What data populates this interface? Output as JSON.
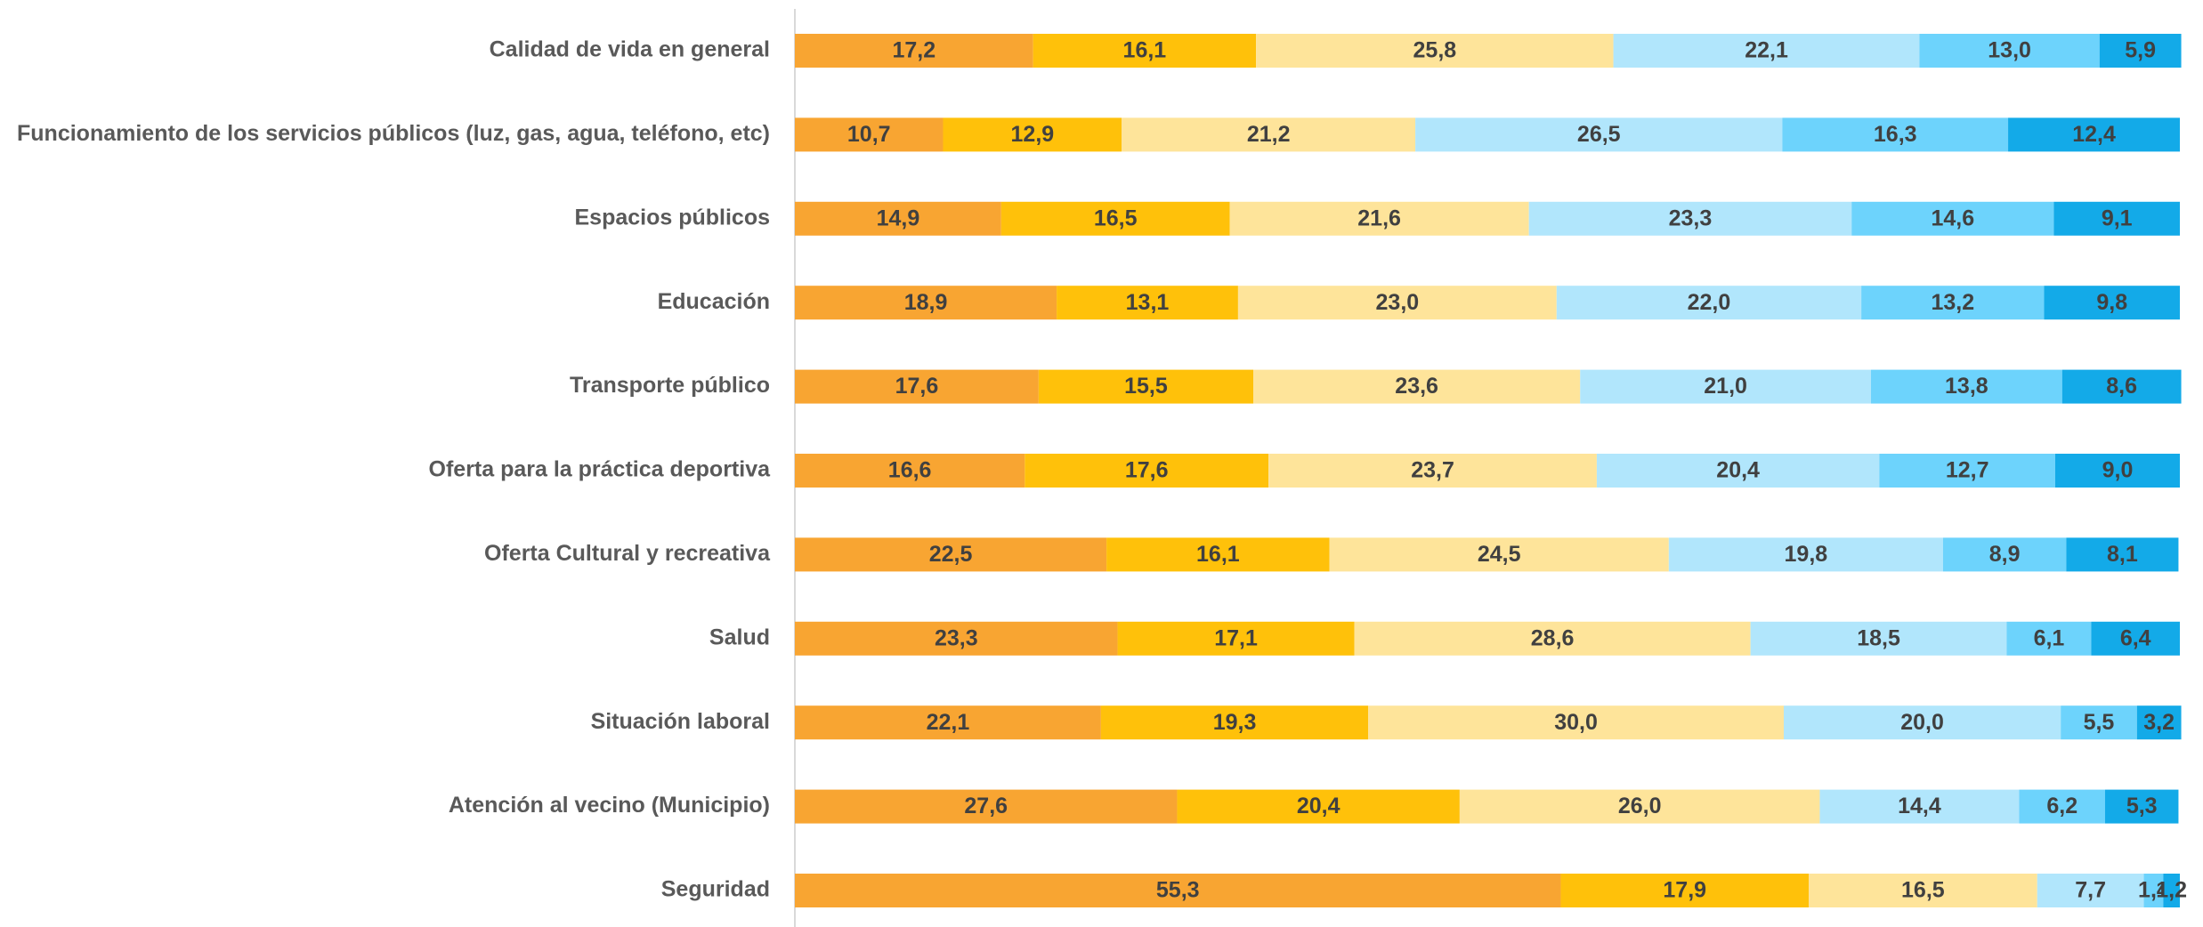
{
  "chart_data": {
    "type": "stacked_barh",
    "categories": [
      "Calidad de vida en general",
      "Funcionamiento de los servicios públicos (luz, gas, agua, teléfono, etc)",
      "Espacios públicos",
      "Educación",
      "Transporte público",
      "Oferta para la práctica deportiva",
      "Oferta Cultural y recreativa",
      "Salud",
      "Situación laboral",
      "Atención al vecino (Municipio)",
      "Seguridad"
    ],
    "xlim": [
      0,
      100
    ],
    "series": [
      {
        "color": "#F8A532",
        "values": [
          17.2,
          10.7,
          14.9,
          18.9,
          17.6,
          16.6,
          22.5,
          23.3,
          22.1,
          27.6,
          55.3
        ],
        "value_labels": [
          "17,2",
          "10,7",
          "14,9",
          "18,9",
          "17,6",
          "16,6",
          "22,5",
          "23,3",
          "22,1",
          "27,6",
          "55,3"
        ]
      },
      {
        "color": "#FFC10A",
        "values": [
          16.1,
          12.9,
          16.5,
          13.1,
          15.5,
          17.6,
          16.1,
          17.1,
          19.3,
          20.4,
          17.9
        ],
        "value_labels": [
          "16,1",
          "12,9",
          "16,5",
          "13,1",
          "15,5",
          "17,6",
          "16,1",
          "17,1",
          "19,3",
          "20,4",
          "17,9"
        ]
      },
      {
        "color": "#FEE49A",
        "values": [
          25.8,
          21.2,
          21.6,
          23.0,
          23.6,
          23.7,
          24.5,
          28.6,
          30.0,
          26.0,
          16.5
        ],
        "value_labels": [
          "25,8",
          "21,2",
          "21,6",
          "23,0",
          "23,6",
          "23,7",
          "24,5",
          "28,6",
          "30,0",
          "26,0",
          "16,5"
        ]
      },
      {
        "color": "#B1E6FC",
        "values": [
          22.1,
          26.5,
          23.3,
          22.0,
          21.0,
          20.4,
          19.8,
          18.5,
          20.0,
          14.4,
          7.7
        ],
        "value_labels": [
          "22,1",
          "26,5",
          "23,3",
          "22,0",
          "21,0",
          "20,4",
          "19,8",
          "18,5",
          "20,0",
          "14,4",
          "7,7"
        ]
      },
      {
        "color": "#6DD3FC",
        "values": [
          13.0,
          16.3,
          14.6,
          13.2,
          13.8,
          12.7,
          8.9,
          6.1,
          5.5,
          6.2,
          1.4
        ],
        "value_labels": [
          "13,0",
          "16,3",
          "14,6",
          "13,2",
          "13,8",
          "12,7",
          "8,9",
          "6,1",
          "5,5",
          "6,2",
          "1,4"
        ]
      },
      {
        "color": "#13AAE8",
        "values": [
          5.9,
          12.4,
          9.1,
          9.8,
          8.6,
          9.0,
          8.1,
          6.4,
          3.2,
          5.3,
          1.2
        ],
        "value_labels": [
          "5,9",
          "12,4",
          "9,1",
          "9,8",
          "8,6",
          "9,0",
          "8,1",
          "6,4",
          "3,2",
          "5,3",
          "1,2"
        ]
      }
    ]
  }
}
